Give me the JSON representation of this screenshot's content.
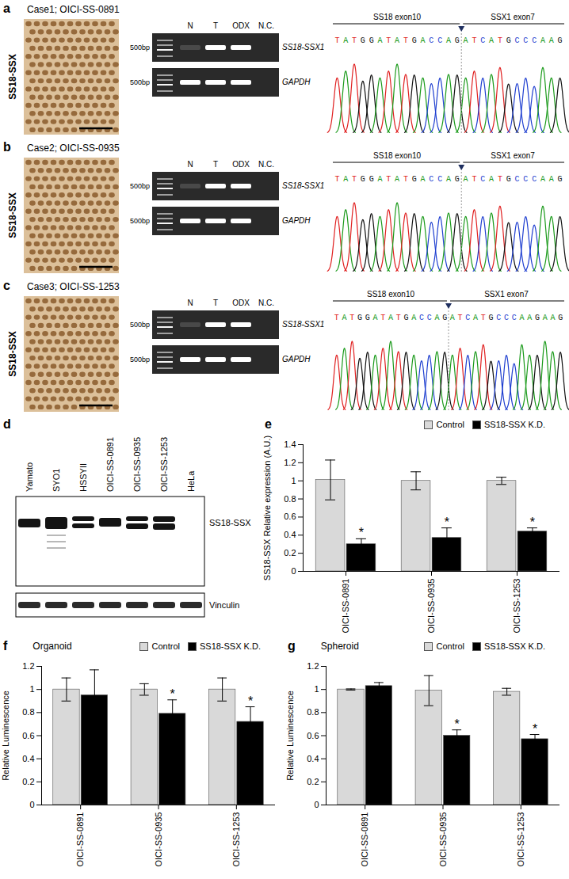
{
  "figure": {
    "panels": [
      {
        "panel": "a",
        "case": "Case1; OICI-SS-0891",
        "stain_label": "SS18-SSX",
        "gel": {
          "lanes": [
            "N",
            "T",
            "ODX",
            "N.C."
          ],
          "ladder": "500bp",
          "rows": [
            "SS18-SSX1",
            "GAPDH"
          ]
        },
        "chromatogram": {
          "left_exon": "SS18 exon10",
          "right_exon": "SSX1 exon7",
          "left_sequence": "TATGGATATGACCAG",
          "right_sequence": "ATCATGCCCAAG"
        }
      },
      {
        "panel": "b",
        "case": "Case2; OICI-SS-0935",
        "stain_label": "SS18-SSX",
        "gel": {
          "lanes": [
            "N",
            "T",
            "ODX",
            "N.C."
          ],
          "ladder": "500bp",
          "rows": [
            "SS18-SSX1",
            "GAPDH"
          ]
        },
        "chromatogram": {
          "left_exon": "SS18 exon10",
          "right_exon": "SSX1 exon7",
          "left_sequence": "TATGGATATGACCAG",
          "right_sequence": "ATCATGCCCAAG"
        }
      },
      {
        "panel": "c",
        "case": "Case3; OICI-SS-1253",
        "stain_label": "SS18-SSX",
        "gel": {
          "lanes": [
            "N",
            "T",
            "ODX",
            "N.C."
          ],
          "ladder": "500bp",
          "rows": [
            "SS18-SSX1",
            "GAPDH"
          ]
        },
        "chromatogram": {
          "left_exon": "SS18 exon10",
          "right_exon": "SSX1 exon7",
          "left_sequence": "TATGGATATGACCAG",
          "right_sequence": "ATCATGCCCAAGAAG"
        }
      }
    ],
    "blot": {
      "panel": "d",
      "lanes": [
        "Yamato",
        "SYO1",
        "HSSYII",
        "OICI-SS-0891",
        "OICI-SS-0935",
        "OICI-SS-1253",
        "HeLa"
      ],
      "rows": [
        "SS18-SSX",
        "Vinculin"
      ]
    }
  },
  "chart_data": [
    {
      "panel": "e",
      "type": "bar",
      "y_label": "SS18-SSX Relative expression (A.U.)",
      "categories": [
        "OICI-SS-0891",
        "OICI-SS-0935",
        "OICI-SS-1253"
      ],
      "series": [
        {
          "name": "Control",
          "color": "#d9d9d9",
          "values": [
            1.01,
            1.0,
            1.0
          ],
          "errors": [
            0.22,
            0.1,
            0.04
          ]
        },
        {
          "name": "SS18-SSX K.D.",
          "color": "#000000",
          "values": [
            0.3,
            0.37,
            0.44
          ],
          "errors": [
            0.06,
            0.11,
            0.04
          ],
          "significance": [
            "*",
            "*",
            "*"
          ]
        }
      ],
      "ylim": [
        0,
        1.4
      ],
      "yticks": [
        0,
        0.2,
        0.4,
        0.6,
        0.8,
        1,
        1.2,
        1.4
      ],
      "legend": "top",
      "grid": false
    },
    {
      "panel": "f",
      "type": "bar",
      "title": "Organoid",
      "y_label": "Relative Luminescence",
      "categories": [
        "OICI-SS-0891",
        "OICI-SS-0935",
        "OICI-SS-1253"
      ],
      "series": [
        {
          "name": "Control",
          "color": "#d9d9d9",
          "values": [
            1.0,
            1.0,
            1.0
          ],
          "errors": [
            0.1,
            0.05,
            0.1
          ]
        },
        {
          "name": "SS18-SSX K.D.",
          "color": "#000000",
          "values": [
            0.95,
            0.79,
            0.72
          ],
          "errors": [
            0.22,
            0.12,
            0.13
          ],
          "significance": [
            null,
            "*",
            "*"
          ]
        }
      ],
      "ylim": [
        0,
        1.2
      ],
      "yticks": [
        0,
        0.2,
        0.4,
        0.6,
        0.8,
        1,
        1.2
      ],
      "legend": "top",
      "grid": false
    },
    {
      "panel": "g",
      "type": "bar",
      "title": "Spheroid",
      "y_label": "Relative Luminescence",
      "categories": [
        "OICI-SS-0891",
        "OICI-SS-0935",
        "OICI-SS-1253"
      ],
      "series": [
        {
          "name": "Control",
          "color": "#d9d9d9",
          "values": [
            1.0,
            0.99,
            0.98
          ],
          "errors": [
            0.005,
            0.13,
            0.03
          ]
        },
        {
          "name": "SS18-SSX K.D.",
          "color": "#000000",
          "values": [
            1.03,
            0.6,
            0.57
          ],
          "errors": [
            0.03,
            0.05,
            0.04
          ],
          "significance": [
            null,
            "*",
            "*"
          ]
        }
      ],
      "ylim": [
        0,
        1.2
      ],
      "yticks": [
        0,
        0.2,
        0.4,
        0.6,
        0.8,
        1,
        1.2
      ],
      "legend": "top",
      "grid": false
    }
  ]
}
